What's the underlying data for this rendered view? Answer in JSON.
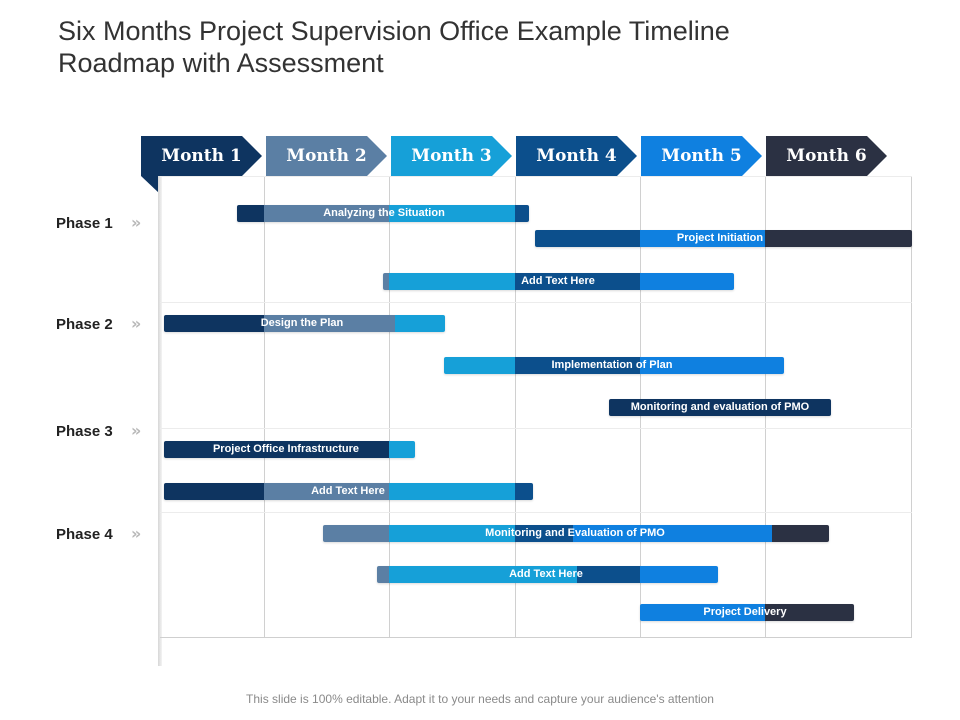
{
  "title": {
    "line1": "Six Months Project Supervision Office  Example Timeline",
    "line2": "Roadmap with Assessment"
  },
  "months": [
    {
      "label": "Month 1",
      "color": "#0e3460"
    },
    {
      "label": "Month 2",
      "color": "#5b7fa4"
    },
    {
      "label": "Month 3",
      "color": "#16a0d8"
    },
    {
      "label": "Month 4",
      "color": "#0c4f8c"
    },
    {
      "label": "Month 5",
      "color": "#0f80e0"
    },
    {
      "label": "Month 6",
      "color": "#2b3143"
    }
  ],
  "phases": [
    {
      "label": "Phase 1",
      "chevron": "»"
    },
    {
      "label": "Phase 2",
      "chevron": "»"
    },
    {
      "label": "Phase 3",
      "chevron": "»"
    },
    {
      "label": "Phase 4",
      "chevron": "»"
    }
  ],
  "tasks": [
    {
      "label": "Analyzing  the Situation"
    },
    {
      "label": "Project Initiation"
    },
    {
      "label": "Add  Text Here"
    },
    {
      "label": "Design the Plan"
    },
    {
      "label": "Implementation of Plan"
    },
    {
      "label": "Monitoring  and evaluation  of  PMO"
    },
    {
      "label": "Project Office Infrastructure"
    },
    {
      "label": "Add  Text Here"
    },
    {
      "label": "Monitoring  and Evaluation  of  PMO"
    },
    {
      "label": "Add  Text Here"
    },
    {
      "label": "Project Delivery"
    }
  ],
  "footer": "This slide is 100% editable. Adapt it to your needs and capture your audience's attention"
}
